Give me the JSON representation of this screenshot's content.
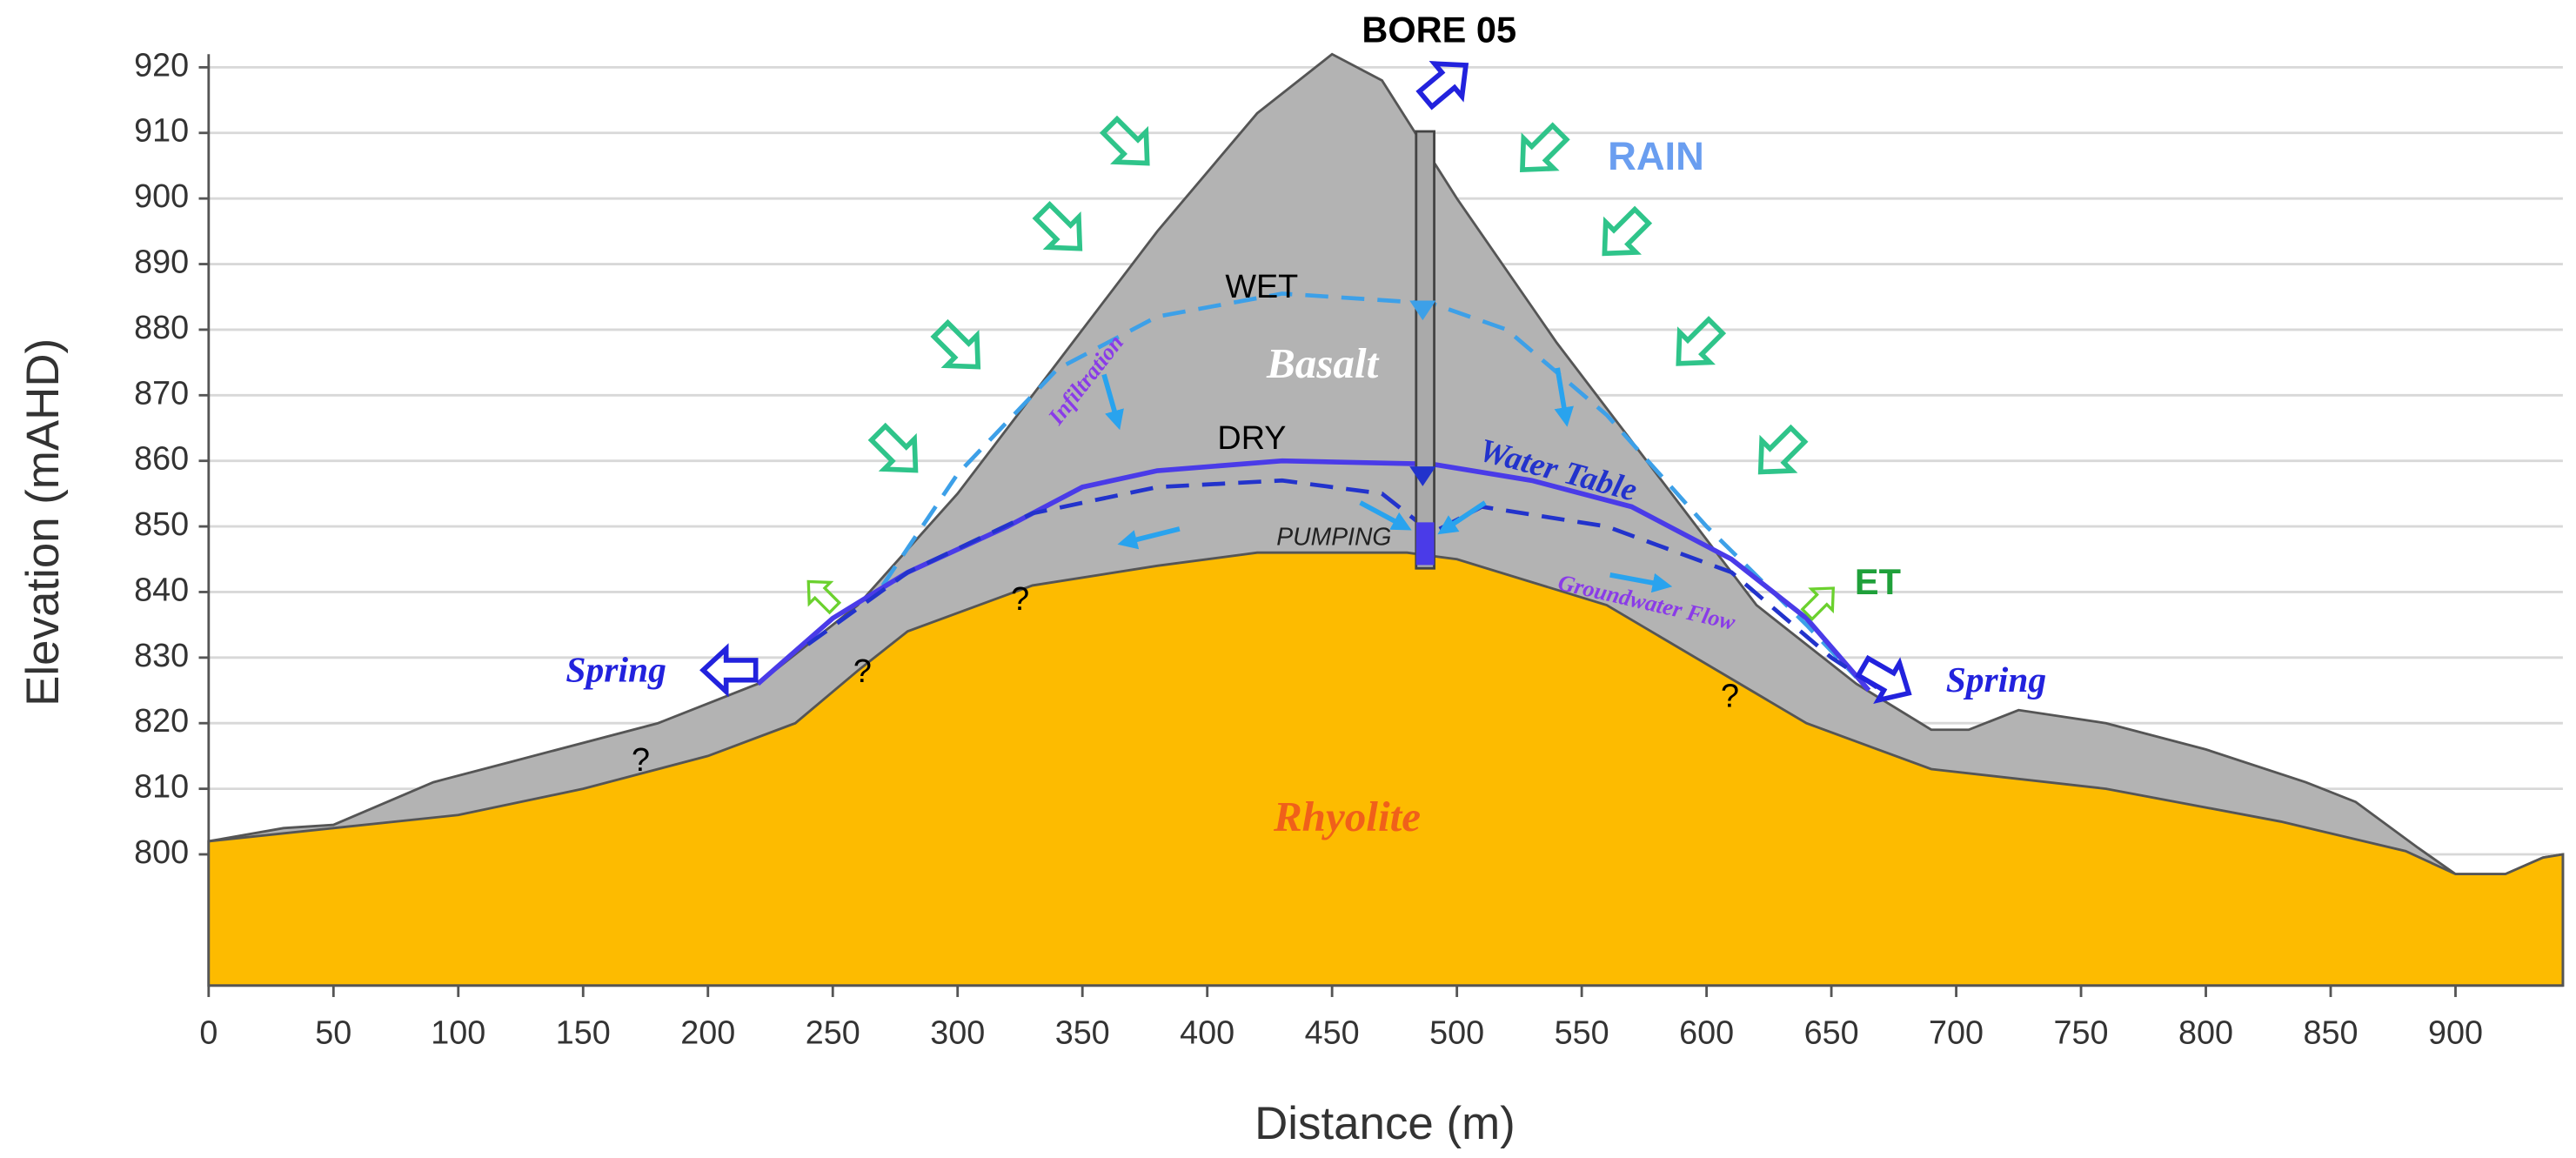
{
  "chart_data": {
    "type": "area",
    "title": "BORE 05",
    "xlabel": "Distance (m)",
    "ylabel": "Elevation (mAHD)",
    "xlim": [
      0,
      943
    ],
    "ylim": [
      780,
      922
    ],
    "xticks": [
      0,
      50,
      100,
      150,
      200,
      250,
      300,
      350,
      400,
      450,
      500,
      550,
      600,
      650,
      700,
      750,
      800,
      850,
      900
    ],
    "yticks": [
      800,
      810,
      820,
      830,
      840,
      850,
      860,
      870,
      880,
      890,
      900,
      910,
      920
    ],
    "grid": true,
    "series": [
      {
        "name": "Basalt",
        "kind": "area",
        "color": "#b3b3b3",
        "x": [
          0,
          30,
          50,
          90,
          120,
          180,
          220,
          260,
          300,
          340,
          380,
          420,
          450,
          470,
          500,
          540,
          580,
          620,
          660,
          690,
          705,
          725,
          760,
          800,
          840,
          860,
          885,
          900,
          920,
          935,
          943
        ],
        "values": [
          802,
          804,
          804.5,
          811,
          814,
          820,
          826,
          838,
          855,
          875,
          895,
          913,
          922,
          918,
          900,
          878,
          858,
          838,
          826,
          819,
          819,
          822,
          820,
          816,
          811,
          808,
          801,
          797,
          797,
          799.5,
          800
        ]
      },
      {
        "name": "Rhyolite",
        "kind": "area",
        "color": "#fdbb00",
        "x": [
          0,
          50,
          100,
          150,
          200,
          235,
          260,
          280,
          330,
          380,
          420,
          480,
          500,
          560,
          600,
          640,
          690,
          760,
          830,
          880,
          900,
          920,
          935,
          943
        ],
        "values": [
          802,
          804,
          806,
          810,
          815,
          820,
          828,
          834,
          841,
          844,
          846,
          846,
          845,
          838,
          829,
          820,
          813,
          810,
          805,
          800.5,
          797,
          797,
          799.5,
          800
        ]
      },
      {
        "name": "WET",
        "kind": "line",
        "style": "dashed",
        "color": "#3da0e8",
        "x": [
          270,
          300,
          340,
          380,
          430,
          490,
          520,
          560,
          600,
          640,
          660
        ],
        "values": [
          841,
          858,
          874,
          882,
          885.5,
          884,
          880,
          867,
          850,
          835,
          827
        ]
      },
      {
        "name": "DRY",
        "kind": "line",
        "style": "solid",
        "color": "#4a3be8",
        "x": [
          220,
          250,
          280,
          320,
          350,
          380,
          430,
          490,
          530,
          570,
          610,
          640,
          665
        ],
        "values": [
          826,
          836,
          843,
          850,
          856,
          858.5,
          860,
          859.5,
          857,
          853,
          845,
          836,
          825
        ]
      },
      {
        "name": "PUMPING",
        "kind": "line",
        "style": "dashed",
        "color": "#2233cc",
        "x": [
          240,
          280,
          330,
          380,
          430,
          470,
          490,
          510,
          560,
          610,
          650,
          670
        ],
        "values": [
          832,
          843,
          852,
          856,
          857,
          855,
          849,
          853,
          850,
          843,
          830,
          825
        ]
      }
    ],
    "annotations": [
      "RAIN",
      "Infiltration",
      "Water Table",
      "Groundwater Flow",
      "ET",
      "Spring",
      "Spring",
      "?",
      "?",
      "?",
      "?"
    ]
  }
}
